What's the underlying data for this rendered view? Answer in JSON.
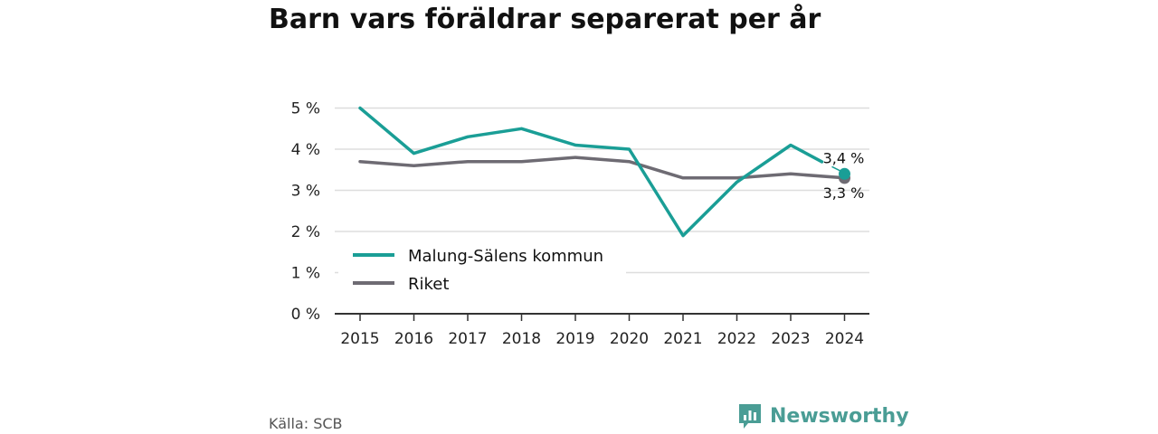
{
  "title": "Barn vars föräldrar separerat per år",
  "source": "Källa: SCB",
  "brand": {
    "name": "Newsworthy",
    "logo_icon": "newsworthy-chart-logo-icon",
    "color": "#4a9d95"
  },
  "chart_data": {
    "type": "line",
    "x": [
      "2015",
      "2016",
      "2017",
      "2018",
      "2019",
      "2020",
      "2021",
      "2022",
      "2023",
      "2024"
    ],
    "series": [
      {
        "name": "Malung-Sälens kommun",
        "color": "#1a9e96",
        "values": [
          5.0,
          3.9,
          4.3,
          4.5,
          4.1,
          4.0,
          1.9,
          3.2,
          4.1,
          3.4
        ],
        "end_label": "3,4 %"
      },
      {
        "name": "Riket",
        "color": "#6e6b73",
        "values": [
          3.7,
          3.6,
          3.7,
          3.7,
          3.8,
          3.7,
          3.3,
          3.3,
          3.4,
          3.3
        ],
        "end_label": "3,3 %"
      }
    ],
    "y_ticks": [
      0,
      1,
      2,
      3,
      4,
      5
    ],
    "y_tick_labels": [
      "0 %",
      "1 %",
      "2 %",
      "3 %",
      "4 %",
      "5 %"
    ],
    "ylim": [
      0,
      5
    ],
    "grid": true,
    "legend_position": "bottom-left"
  }
}
